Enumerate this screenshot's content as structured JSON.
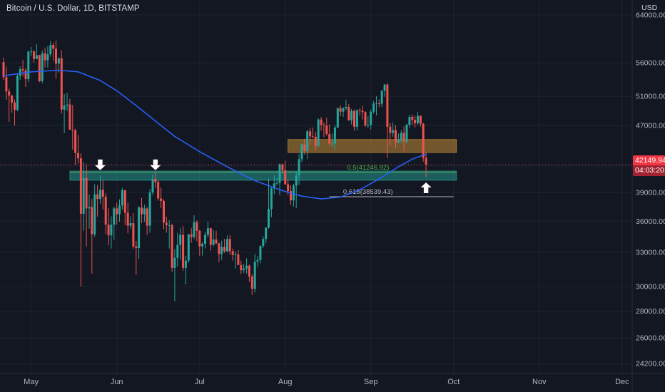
{
  "price_axis": {
    "currency_label": "USD"
  },
  "chart_data": {
    "type": "candlestick",
    "title": "Bitcoin / U.S. Dollar, 1D, BITSTAMP",
    "colors": {
      "background": "#131722",
      "up": "#26a69a",
      "down": "#ef5350",
      "grid": "rgba(182,196,230,0.07)",
      "axis_text": "#b2b5be",
      "separator": "#2a2e39",
      "badge": "#f23645"
    },
    "y_axis": {
      "scale": "log",
      "tick_labels": [
        "64000.00",
        "56000.00",
        "51000.00",
        "47000.00",
        "42000.00",
        "39000.00",
        "36000.00",
        "33000.00",
        "30000.00",
        "28000.00",
        "26000.00",
        "24200.00"
      ],
      "tick_prices": [
        64000,
        56000,
        51000,
        47000,
        42000,
        39000,
        36000,
        33000,
        30000,
        28000,
        26000,
        24200
      ]
    },
    "x_axis": {
      "month_labels": [
        "May",
        "Jun",
        "Jul",
        "Aug",
        "Sep",
        "Oct",
        "Nov",
        "Dec"
      ],
      "month_day_index": [
        10,
        41,
        71,
        102,
        133,
        163,
        194,
        224
      ]
    },
    "candles": [
      [
        56100,
        56800,
        53400,
        53800
      ],
      [
        53800,
        55400,
        50500,
        51700
      ],
      [
        51700,
        52100,
        47500,
        51100
      ],
      [
        51100,
        51200,
        48700,
        50100
      ],
      [
        50100,
        50550,
        47000,
        49100
      ],
      [
        49100,
        54300,
        48900,
        54000
      ],
      [
        54000,
        55450,
        53350,
        55000
      ],
      [
        55000,
        56450,
        53900,
        54800
      ],
      [
        54800,
        55200,
        52350,
        53500
      ],
      [
        53500,
        57950,
        53050,
        57750
      ],
      [
        57750,
        58500,
        57050,
        57800
      ],
      [
        57800,
        57950,
        56050,
        56600
      ],
      [
        56600,
        58975,
        56550,
        57200
      ],
      [
        57200,
        57250,
        53050,
        53200
      ],
      [
        53200,
        57950,
        52900,
        57500
      ],
      [
        57500,
        58400,
        55250,
        56400
      ],
      [
        56400,
        58650,
        55250,
        57350
      ],
      [
        57350,
        59500,
        56950,
        58850
      ],
      [
        58850,
        59250,
        56250,
        58250
      ],
      [
        58250,
        59600,
        53550,
        55850
      ],
      [
        55850,
        56850,
        54500,
        56700
      ],
      [
        56700,
        58000,
        48600,
        49150
      ],
      [
        49150,
        51350,
        46000,
        49700
      ],
      [
        49700,
        51500,
        48950,
        49850
      ],
      [
        49850,
        50650,
        46550,
        46450
      ],
      [
        46450,
        49800,
        43950,
        46400
      ],
      [
        46400,
        46600,
        42150,
        43550
      ],
      [
        43550,
        45800,
        42300,
        42900
      ],
      [
        42900,
        43500,
        30000,
        36750
      ],
      [
        36750,
        42450,
        35050,
        40600
      ],
      [
        40600,
        42200,
        33550,
        37300
      ],
      [
        37300,
        38800,
        35250,
        37450
      ],
      [
        37450,
        38300,
        31100,
        34700
      ],
      [
        34700,
        39900,
        34450,
        38800
      ],
      [
        38800,
        39800,
        36450,
        38300
      ],
      [
        38300,
        40850,
        37800,
        39300
      ],
      [
        39300,
        40400,
        37200,
        38550
      ],
      [
        38550,
        38900,
        34700,
        35650
      ],
      [
        35650,
        37300,
        33650,
        34600
      ],
      [
        34600,
        36500,
        33350,
        35650
      ],
      [
        35650,
        37500,
        34150,
        37300
      ],
      [
        37300,
        37900,
        35650,
        36700
      ],
      [
        36700,
        38250,
        35950,
        37600
      ],
      [
        37600,
        39500,
        37200,
        39250
      ],
      [
        39250,
        39300,
        35600,
        36850
      ],
      [
        36850,
        37900,
        34800,
        35550
      ],
      [
        35550,
        36480,
        35250,
        35800
      ],
      [
        35800,
        36800,
        33350,
        33550
      ],
      [
        33550,
        34070,
        31000,
        33400
      ],
      [
        33400,
        37550,
        32400,
        37400
      ],
      [
        37400,
        38400,
        35800,
        36700
      ],
      [
        36700,
        37700,
        35950,
        37300
      ],
      [
        37300,
        37450,
        34650,
        35550
      ],
      [
        35550,
        39400,
        34850,
        39000
      ],
      [
        39000,
        41050,
        38750,
        40500
      ],
      [
        40500,
        41300,
        39500,
        40150
      ],
      [
        40150,
        40400,
        38100,
        38350
      ],
      [
        38350,
        39550,
        37350,
        38100
      ],
      [
        38100,
        38250,
        35200,
        35850
      ],
      [
        35850,
        36450,
        34850,
        35600
      ],
      [
        35600,
        36100,
        33350,
        35600
      ],
      [
        35600,
        35750,
        31250,
        31600
      ],
      [
        31600,
        33300,
        28800,
        32500
      ],
      [
        32500,
        34850,
        31700,
        33700
      ],
      [
        33700,
        35300,
        32300,
        34650
      ],
      [
        34650,
        35500,
        31350,
        31600
      ],
      [
        31600,
        32700,
        30150,
        32250
      ],
      [
        32250,
        34750,
        32050,
        34700
      ],
      [
        34700,
        35300,
        33900,
        34450
      ],
      [
        34450,
        36600,
        34250,
        35900
      ],
      [
        35900,
        36100,
        34050,
        35050
      ],
      [
        35050,
        35100,
        32700,
        33550
      ],
      [
        33550,
        33950,
        32700,
        33800
      ],
      [
        33800,
        34950,
        33350,
        34650
      ],
      [
        34650,
        35950,
        34400,
        35300
      ],
      [
        35300,
        35350,
        33150,
        33700
      ],
      [
        33700,
        35100,
        33550,
        34200
      ],
      [
        34200,
        35050,
        33750,
        33850
      ],
      [
        33850,
        33900,
        32100,
        32850
      ],
      [
        32850,
        34100,
        32300,
        33500
      ],
      [
        33500,
        34250,
        32950,
        33100
      ],
      [
        33100,
        34600,
        33000,
        34250
      ],
      [
        34250,
        34650,
        32750,
        33100
      ],
      [
        33100,
        33350,
        32250,
        32750
      ],
      [
        32750,
        33100,
        31550,
        32800
      ],
      [
        32800,
        33200,
        31850,
        31850
      ],
      [
        31850,
        32250,
        31050,
        31400
      ],
      [
        31400,
        31950,
        31150,
        31550
      ],
      [
        31550,
        32450,
        31100,
        31800
      ],
      [
        31800,
        31900,
        30400,
        30850
      ],
      [
        30850,
        31050,
        29300,
        29800
      ],
      [
        29800,
        32850,
        29500,
        32150
      ],
      [
        32150,
        32650,
        31700,
        32300
      ],
      [
        32300,
        33650,
        32000,
        33600
      ],
      [
        33600,
        34500,
        33400,
        34250
      ],
      [
        34250,
        35400,
        33850,
        35350
      ],
      [
        35350,
        40550,
        35250,
        37250
      ],
      [
        37250,
        39550,
        36400,
        39450
      ],
      [
        39450,
        40900,
        38800,
        40000
      ],
      [
        40000,
        40650,
        39750,
        40050
      ],
      [
        40050,
        42300,
        38700,
        42200
      ],
      [
        42200,
        42250,
        41050,
        41500
      ],
      [
        41500,
        42600,
        39850,
        39900
      ],
      [
        39900,
        40450,
        38700,
        39150
      ],
      [
        39150,
        39800,
        37650,
        38150
      ],
      [
        38150,
        39950,
        37500,
        39750
      ],
      [
        39750,
        41350,
        37350,
        40900
      ],
      [
        40900,
        43400,
        39850,
        42800
      ],
      [
        42800,
        44750,
        42450,
        44600
      ],
      [
        44600,
        45300,
        43350,
        43800
      ],
      [
        43800,
        46450,
        42800,
        46250
      ],
      [
        46250,
        46700,
        44600,
        45600
      ],
      [
        45600,
        46750,
        45350,
        45550
      ],
      [
        45550,
        46200,
        43770,
        44400
      ],
      [
        44400,
        47950,
        44250,
        47800
      ],
      [
        47800,
        48150,
        46300,
        47100
      ],
      [
        47100,
        47400,
        45500,
        47000
      ],
      [
        47000,
        48050,
        45700,
        45900
      ],
      [
        45900,
        47150,
        44450,
        44700
      ],
      [
        44700,
        46000,
        44250,
        44700
      ],
      [
        44700,
        47050,
        43950,
        46750
      ],
      [
        46750,
        49400,
        46650,
        49350
      ],
      [
        49350,
        49750,
        48250,
        48850
      ],
      [
        48850,
        49500,
        48150,
        49300
      ],
      [
        49300,
        50500,
        49050,
        49500
      ],
      [
        49500,
        49900,
        47600,
        47700
      ],
      [
        47700,
        49250,
        47150,
        48950
      ],
      [
        48950,
        49150,
        46350,
        46850
      ],
      [
        46850,
        49150,
        46350,
        49050
      ],
      [
        49050,
        49300,
        48350,
        48950
      ],
      [
        48950,
        49650,
        47800,
        48800
      ],
      [
        48800,
        48900,
        46850,
        47000
      ],
      [
        47000,
        48250,
        46700,
        47100
      ],
      [
        47100,
        49150,
        46500,
        48850
      ],
      [
        48850,
        50350,
        48600,
        49950
      ],
      [
        49950,
        51000,
        48350,
        50000
      ],
      [
        50000,
        50550,
        49450,
        49950
      ],
      [
        49950,
        51900,
        49500,
        51800
      ],
      [
        51800,
        52750,
        50950,
        52700
      ],
      [
        52700,
        52900,
        42900,
        46850
      ],
      [
        46850,
        47350,
        44450,
        46050
      ],
      [
        46050,
        47400,
        45550,
        46400
      ],
      [
        46400,
        47050,
        44150,
        44850
      ],
      [
        44850,
        45950,
        44750,
        45150
      ],
      [
        45150,
        46400,
        44700,
        46050
      ],
      [
        46050,
        46880,
        43750,
        44950
      ],
      [
        44950,
        47250,
        44700,
        47100
      ],
      [
        47100,
        48450,
        46750,
        48150
      ],
      [
        48150,
        48500,
        47050,
        47750
      ],
      [
        47750,
        48300,
        46750,
        47300
      ],
      [
        47300,
        48800,
        47050,
        48300
      ],
      [
        48300,
        48350,
        46850,
        47250
      ],
      [
        47250,
        47350,
        42500,
        42950
      ],
      [
        42950,
        43600,
        40700,
        42149.94
      ]
    ],
    "ma_line": {
      "name": "moving-average",
      "color": "#2962ff",
      "points": [
        [
          0,
          54000
        ],
        [
          10,
          54600
        ],
        [
          20,
          54850
        ],
        [
          27,
          54600
        ],
        [
          35,
          53300
        ],
        [
          41,
          51800
        ],
        [
          48,
          49700
        ],
        [
          55,
          47600
        ],
        [
          62,
          45600
        ],
        [
          71,
          43700
        ],
        [
          81,
          41900
        ],
        [
          91,
          40300
        ],
        [
          101,
          39200
        ],
        [
          108,
          38600
        ],
        [
          115,
          38300
        ],
        [
          122,
          38500
        ],
        [
          129,
          39300
        ],
        [
          136,
          40500
        ],
        [
          143,
          41900
        ],
        [
          148,
          42800
        ],
        [
          153,
          43400
        ]
      ]
    },
    "drawings": {
      "zones": [
        {
          "name": "teal-support-zone",
          "day_start": 24,
          "day_end": 164,
          "price_top": 41400,
          "price_bottom": 40350,
          "fill": "#26a69a",
          "opacity": 0.5,
          "stroke": "rgba(56,190,170,0.55)"
        },
        {
          "name": "brown-resistance-zone",
          "day_start": 103,
          "day_end": 164,
          "price_top": 45200,
          "price_bottom": 43600,
          "fill": "#ac8032",
          "opacity": 0.62,
          "stroke": "rgba(172,128,50,0.9)"
        }
      ],
      "fib_levels": [
        {
          "label": "0.5(41246.92)",
          "price": 41246.92,
          "day_start": 24,
          "day_end": 164,
          "color": "#4caf50",
          "label_day": 132
        },
        {
          "label": "0.618(38539.43)",
          "price": 38539.43,
          "day_start": 118,
          "day_end": 163,
          "color": "#b2b5be",
          "label_day": 132
        }
      ],
      "arrows": [
        {
          "direction": "down",
          "day": 35,
          "price": 41500,
          "color": "#ffffff"
        },
        {
          "direction": "down",
          "day": 55,
          "price": 41500,
          "color": "#ffffff"
        },
        {
          "direction": "up",
          "day": 153,
          "price": 40100,
          "color": "#ffffff"
        }
      ]
    },
    "last_price": {
      "value": 42149.94,
      "label": "42149.94",
      "countdown": "04:03:20",
      "color": "#f23645"
    }
  }
}
